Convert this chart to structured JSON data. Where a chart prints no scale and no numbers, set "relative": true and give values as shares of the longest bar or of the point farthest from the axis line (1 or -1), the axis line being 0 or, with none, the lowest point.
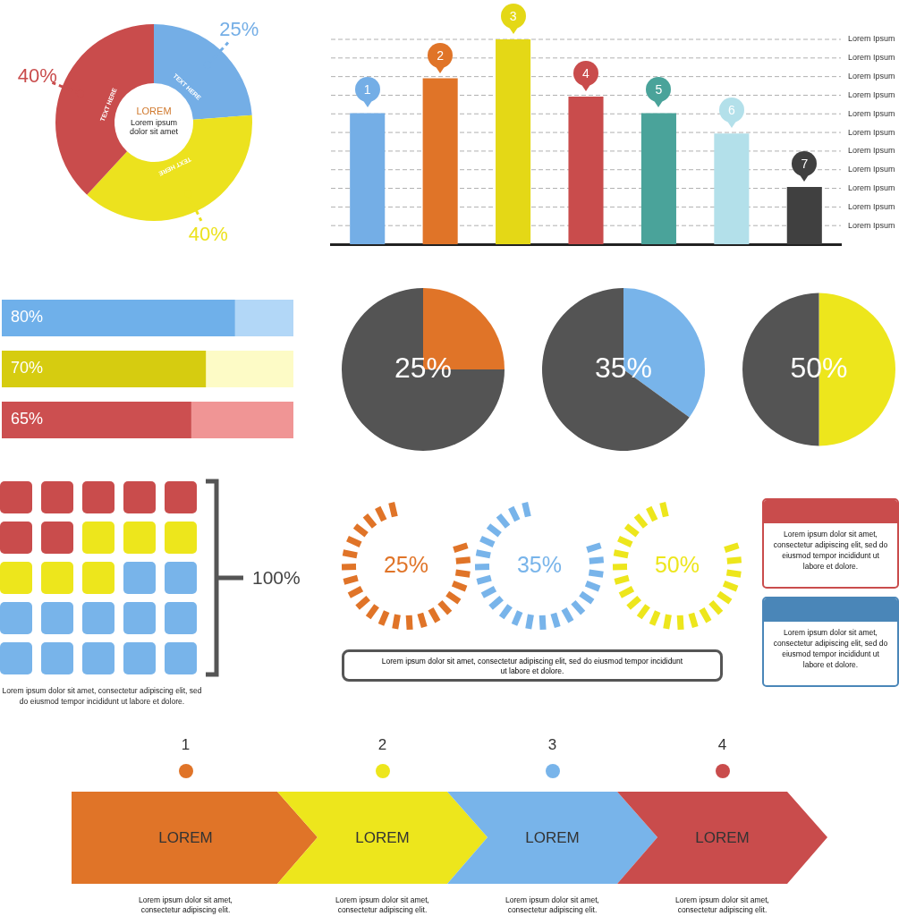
{
  "chart_data": [
    {
      "type": "donut",
      "categories": [
        null,
        null,
        null
      ],
      "values": [
        25,
        40,
        40
      ],
      "colors": [
        "#74aee6",
        "#ece21e",
        "#c94c4c"
      ],
      "value_labels": [
        "25%",
        "40%",
        "40%"
      ],
      "annotations": [
        "LOREM",
        "Lorem ipsum dolor sit amet",
        "TEXT HERE",
        "TEXT HERE",
        "TEXT HERE"
      ]
    },
    {
      "type": "bar",
      "relative": true,
      "categories": [
        "1",
        "2",
        "3",
        "4",
        "5",
        "6",
        "7"
      ],
      "values": [
        0.64,
        0.81,
        1,
        0.72,
        0.64,
        0.54,
        0.28
      ],
      "colors": [
        "#74aee6",
        "#e07428",
        "#e4d816",
        "#c94c4c",
        "#4aa39a",
        "#b3e0ea",
        "#404040"
      ],
      "grid": true,
      "tick_labels": false,
      "annotations": [
        "Lorem Ipsum",
        "Lorem Ipsum",
        "Lorem Ipsum",
        "Lorem Ipsum",
        "Lorem Ipsum",
        "Lorem Ipsum",
        "Lorem Ipsum",
        "Lorem Ipsum",
        "Lorem Ipsum",
        "Lorem Ipsum",
        "Lorem Ipsum"
      ]
    },
    {
      "type": "bar",
      "orientation": "horizontal",
      "stacked": true,
      "categories": [
        null,
        null,
        null
      ],
      "xlim": [
        0,
        100
      ],
      "tick_labels": false,
      "series": [
        {
          "values": [
            80,
            70,
            65
          ],
          "colors": [
            "#6fb0ea",
            "#d6cc10",
            "#cc4f50"
          ],
          "value_labels": [
            "80%",
            "70%",
            "65%"
          ]
        },
        {
          "values": [
            20,
            30,
            35
          ],
          "colors": [
            "#b2d7f7",
            "#fdfbc6",
            "#f09595"
          ]
        }
      ]
    },
    {
      "type": "pie",
      "categories": [
        null,
        null
      ],
      "values": [
        25,
        75
      ],
      "colors": [
        "#e07428",
        "#545454"
      ],
      "annotations": [
        "25%"
      ]
    },
    {
      "type": "pie",
      "categories": [
        null,
        null
      ],
      "values": [
        35,
        65
      ],
      "colors": [
        "#78b4ea",
        "#545454"
      ],
      "annotations": [
        "35%"
      ]
    },
    {
      "type": "pie",
      "categories": [
        null,
        null
      ],
      "values": [
        50,
        50
      ],
      "colors": [
        "#ede61c",
        "#545454"
      ],
      "annotations": [
        "50%"
      ]
    },
    {
      "type": "other",
      "colors": [
        "#c94c4c",
        "#c94c4c",
        "#c94c4c",
        "#c94c4c",
        "#c94c4c",
        "#c94c4c",
        "#c94c4c",
        "#ede61c",
        "#ede61c",
        "#ede61c",
        "#ede61c",
        "#ede61c",
        "#ede61c",
        "#78b4ea",
        "#78b4ea",
        "#78b4ea",
        "#78b4ea",
        "#78b4ea",
        "#78b4ea",
        "#78b4ea",
        "#78b4ea",
        "#78b4ea",
        "#78b4ea",
        "#78b4ea",
        "#78b4ea"
      ],
      "annotations": [
        "100%",
        "Lorem ipsum dolor sit amet, consectetur adipiscing elit, sed do eiusmod tempor incididunt ut labore et dolore."
      ]
    },
    {
      "type": "other",
      "colors": [
        "#e07428",
        "#78b4ea",
        "#ede61c"
      ],
      "annotations": [
        "25%",
        "35%",
        "50%",
        "Lorem ipsum dolor sit amet, consectetur adipiscing elit, sed do eiusmod tempor incididunt ut labore et dolore."
      ]
    },
    {
      "type": "other",
      "colors": [
        "#c94c4c",
        "#4a86b8"
      ],
      "annotations": [
        "Lorem ipsum dolor sit amet, consectetur adipiscing elit, sed do eiusmod tempor incididunt ut labore et dolore.",
        "Lorem ipsum dolor sit amet, consectetur adipiscing elit, sed do eiusmod tempor incididunt ut labore et dolore."
      ]
    },
    {
      "type": "other",
      "colors": [
        "#e07428",
        "#ede61c",
        "#78b4ea",
        "#c94c4c"
      ],
      "annotations": [
        "1",
        "2",
        "3",
        "4",
        "LOREM",
        "LOREM",
        "LOREM",
        "LOREM",
        "Lorem ipsum dolor sit amet, consectetur adipiscing elit.",
        "Lorem ipsum dolor sit amet, consectetur adipiscing elit.",
        "Lorem ipsum dolor sit amet, consectetur adipiscing elit.",
        "Lorem ipsum dolor sit amet, consectetur adipiscing elit."
      ]
    }
  ]
}
